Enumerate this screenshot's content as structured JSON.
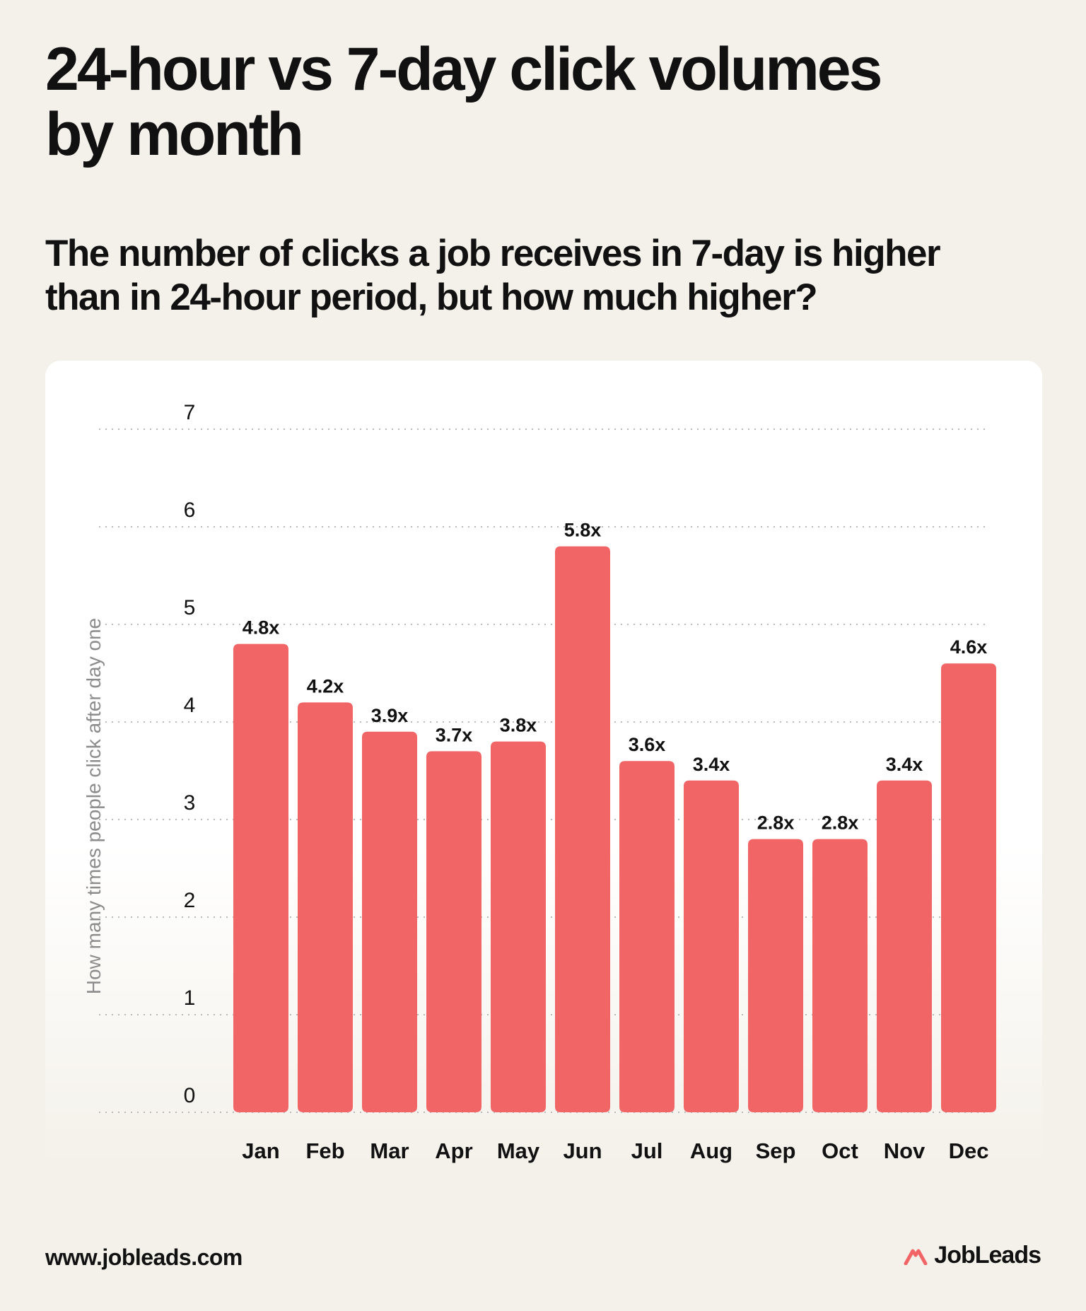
{
  "header": {
    "title": "24-hour vs 7-day click volumes\nby month",
    "subtitle": "The number of clicks a job receives in 7-day is higher\nthan in 24-hour period, but how much higher?"
  },
  "footer": {
    "url": "www.jobleads.com",
    "brand": "JobLeads"
  },
  "colors": {
    "background": "#f4f1ea",
    "bar": "#f26566",
    "text": "#111111",
    "axis_label": "#8c8c8c",
    "grid": "#b9b9b9"
  },
  "chart_data": {
    "type": "bar",
    "title": "24-hour vs 7-day click volumes\nby month",
    "subtitle": "The number of clicks a job receives in 7-day is higher\nthan in 24-hour period, but how much higher?",
    "xlabel": "",
    "ylabel": "How many times people click after day one",
    "categories": [
      "Jan",
      "Feb",
      "Mar",
      "Apr",
      "May",
      "Jun",
      "Jul",
      "Aug",
      "Sep",
      "Oct",
      "Nov",
      "Dec"
    ],
    "values": [
      4.8,
      4.2,
      3.9,
      3.7,
      3.8,
      5.8,
      3.6,
      3.4,
      2.8,
      2.8,
      3.4,
      4.6
    ],
    "data_labels": [
      "4.8x",
      "4.2x",
      "3.9x",
      "3.7x",
      "3.8x",
      "5.8x",
      "3.6x",
      "3.4x",
      "2.8x",
      "2.8x",
      "3.4x",
      "4.6x"
    ],
    "yticks": [
      "0",
      "1",
      "2",
      "3",
      "4",
      "5",
      "6",
      "7"
    ],
    "ylim": [
      0,
      7
    ],
    "grid": true,
    "grid_style": "dotted",
    "legend": "none"
  }
}
